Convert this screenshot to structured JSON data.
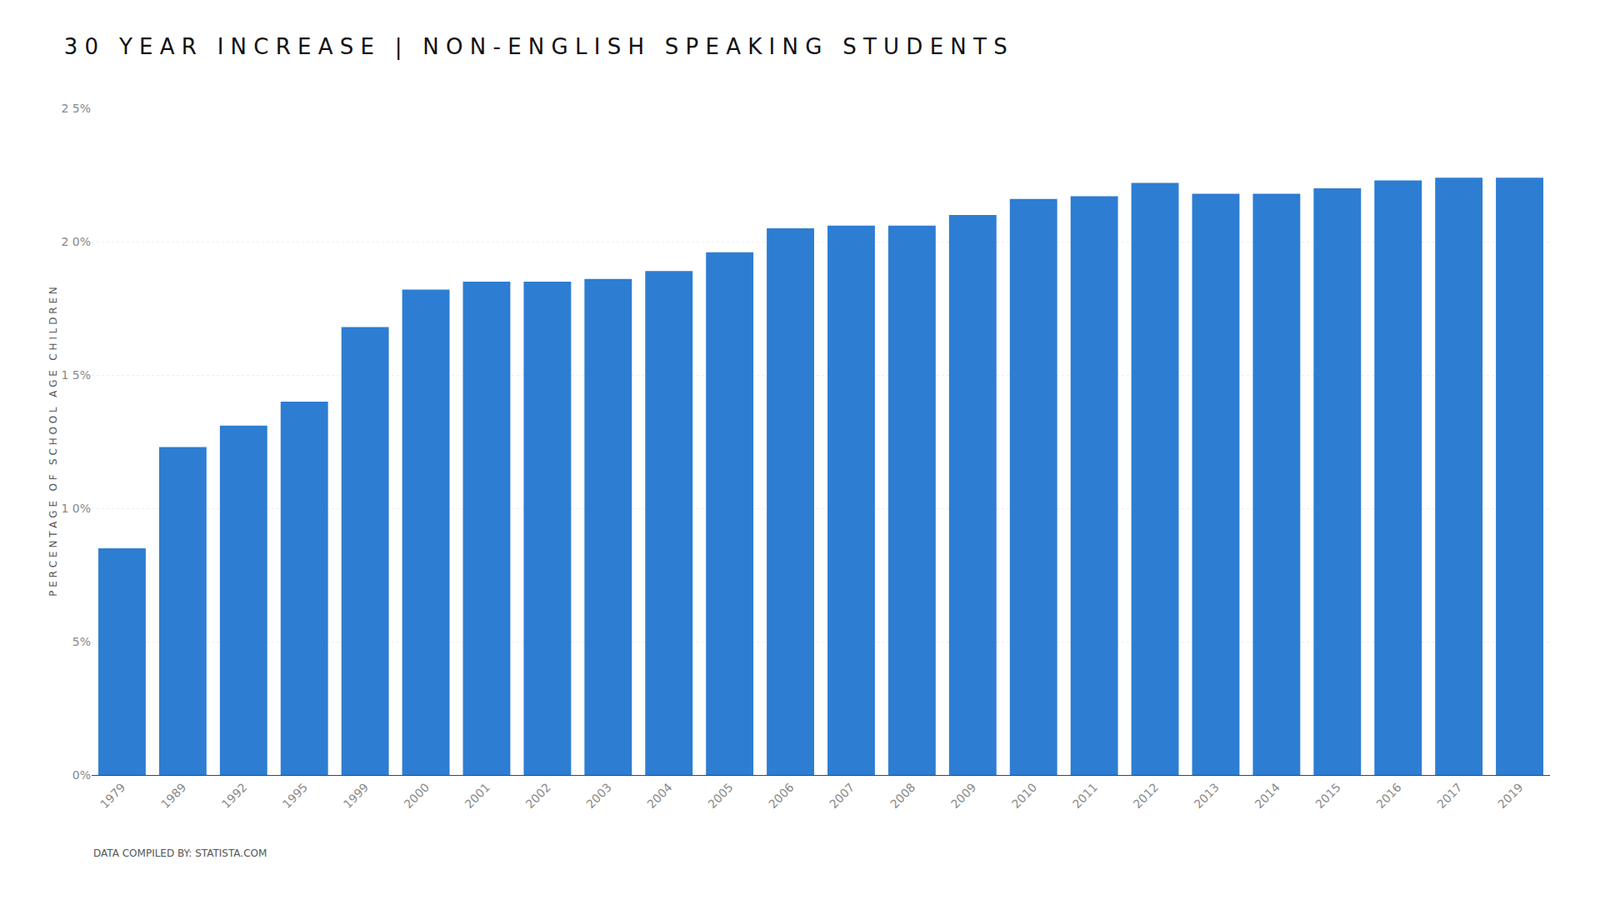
{
  "chart_data": {
    "type": "bar",
    "title": "3 0   Y E A R   I N C R E A S E   |   N O N - E N G L I S H   S P E A K I N G   S T U D E N T S",
    "ylabel": "P E R C E N T A G E   O F   S C H O O L   A G E   C H I L D R E N",
    "annotations": [
      "DATA COMPILED BY: STATISTA.COM"
    ],
    "categories": [
      "1979",
      "1989",
      "1992",
      "1995",
      "1999",
      "2000",
      "2001",
      "2002",
      "2003",
      "2004",
      "2005",
      "2006",
      "2007",
      "2008",
      "2009",
      "2010",
      "2011",
      "2012",
      "2013",
      "2014",
      "2015",
      "2016",
      "2017",
      "2019"
    ],
    "values": [
      8.5,
      12.3,
      13.1,
      14.0,
      16.8,
      18.2,
      18.5,
      18.5,
      18.6,
      18.9,
      19.6,
      20.5,
      20.6,
      20.6,
      21.0,
      21.6,
      21.7,
      22.2,
      21.8,
      21.8,
      22.0,
      22.3,
      22.4,
      22.4
    ],
    "color": "#2d7dd2",
    "ylim": [
      0,
      25
    ],
    "yticks": [
      {
        "value": 0,
        "label": "0%"
      },
      {
        "value": 5,
        "label": "5%"
      },
      {
        "value": 10,
        "label": "1 0%"
      },
      {
        "value": 15,
        "label": "1 5%"
      },
      {
        "value": 20,
        "label": "2 0%"
      },
      {
        "value": 25,
        "label": "2 5%"
      }
    ],
    "grid": true
  }
}
